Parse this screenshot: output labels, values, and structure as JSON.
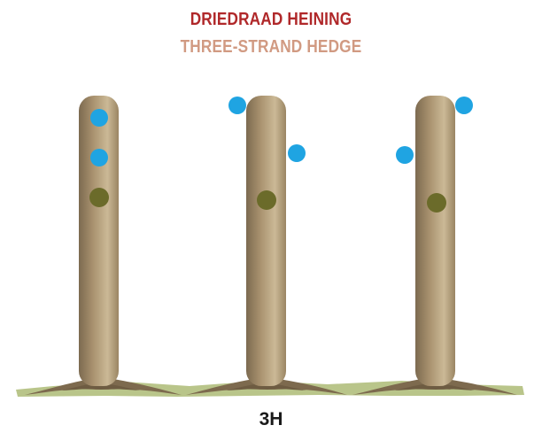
{
  "title": {
    "primary": "DRIEDRAAD HEINING",
    "secondary": "THREE-STRAND HEDGE"
  },
  "caption": "3H",
  "colors": {
    "title_primary": "#b0282a",
    "title_secondary": "#d19a82",
    "post_base": "#a8916e",
    "post_highlight": "#cbb996",
    "post_shadow": "#7c6a50",
    "wire_strand": "#1fa4e2",
    "green_strand": "#6b6b2a",
    "ground": "#b9c58a",
    "roots": "#7d6a4e"
  },
  "posts": [
    {
      "label": "post-1",
      "strands": [
        "wire-strand",
        "wire-strand",
        "green-strand"
      ]
    },
    {
      "label": "post-2",
      "strands": [
        "wire-strand",
        "wire-strand",
        "green-strand"
      ]
    },
    {
      "label": "post-3",
      "strands": [
        "wire-strand",
        "wire-strand",
        "green-strand"
      ]
    }
  ]
}
